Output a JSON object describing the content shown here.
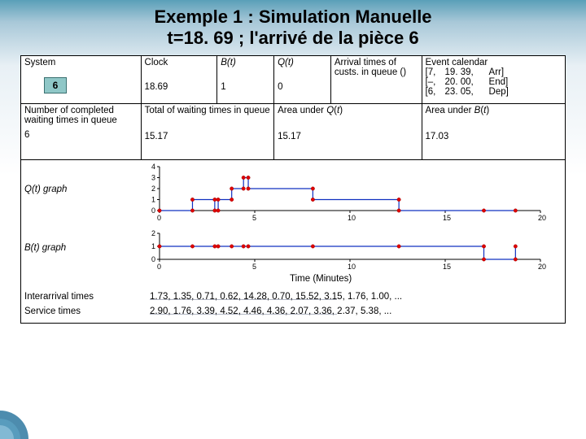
{
  "title": {
    "line1": "Exemple 1 : Simulation Manuelle",
    "line2": "t=18. 69 ; l'arrivé de la pièce 6"
  },
  "row1": {
    "system_label": "System",
    "piece": "6",
    "clock_label": "Clock",
    "clock_value": "18.69",
    "bt_label": "B(t)",
    "bt_value": "1",
    "qt_label": "Q(t)",
    "qt_value": "0",
    "arr_label": "Arrival times of custs. in queue ()",
    "arr_value": "",
    "evcal_label": "Event calendar",
    "evcal_rows": [
      {
        "col1": "[7,",
        "col2": "19. 39,",
        "col3": "Arr]"
      },
      {
        "col1": "[–,",
        "col2": "20. 00,",
        "col3": "End]"
      },
      {
        "col1": "[6,",
        "col2": "23. 05,",
        "col3": "Dep]"
      }
    ]
  },
  "row2": {
    "num_label": "Number of completed waiting times in queue",
    "num_sub": "6",
    "tot_label": "Total of waiting times in queue",
    "tot_value": "15.17",
    "aq_label": "Area under Q(t)",
    "aq_value": "15.17",
    "ab_label": "Area under B(t)",
    "ab_value": "17.03"
  },
  "graphs": {
    "qt_label": "Q(t) graph",
    "bt_label": "B(t) graph",
    "time_label": "Time (Minutes)",
    "interarr_label": "Interarrival times",
    "interarr_values": "1.73, 1.35, 0.71, 0.62, 14.28, 0.70, 15.52, 3.15, 1.76, 1.00, ...",
    "service_label": "Service times",
    "service_values": "2.90, 1.76, 3.39, 4.52, 4.46, 4.36, 2.07, 3.36, 2.37, 5.38, ...",
    "qt_chart": {
      "type": "step",
      "x_range": [
        0,
        20
      ],
      "y_range": [
        0,
        4
      ],
      "y_ticks": [
        0,
        1,
        2,
        3,
        4
      ],
      "x_ticks": [
        0,
        5,
        10,
        15,
        20
      ],
      "points_t": [
        0,
        1.73,
        2.9,
        3.08,
        3.79,
        4.41,
        4.66,
        8.05,
        12.57,
        17.03,
        18.69
      ],
      "points_y": [
        0,
        1,
        0,
        1,
        2,
        3,
        2,
        1,
        0,
        0,
        0
      ],
      "line_color": "#1030c0",
      "marker_color": "#e00000"
    },
    "bt_chart": {
      "type": "step",
      "x_range": [
        0,
        20
      ],
      "y_range": [
        0,
        2
      ],
      "y_ticks": [
        0,
        1,
        2
      ],
      "x_ticks": [
        0,
        5,
        10,
        15,
        20
      ],
      "points_t": [
        0,
        1.73,
        2.9,
        3.08,
        3.79,
        4.41,
        4.66,
        8.05,
        12.57,
        17.03,
        18.69
      ],
      "points_y": [
        1,
        1,
        1,
        1,
        1,
        1,
        1,
        1,
        1,
        0,
        1
      ],
      "line_color": "#1030c0",
      "marker_color": "#e00000"
    }
  },
  "styling": {
    "background_gradient_top": "#5a9fb8",
    "piece_fill": "#8fc7c7",
    "piece_border": "#3a7070"
  }
}
